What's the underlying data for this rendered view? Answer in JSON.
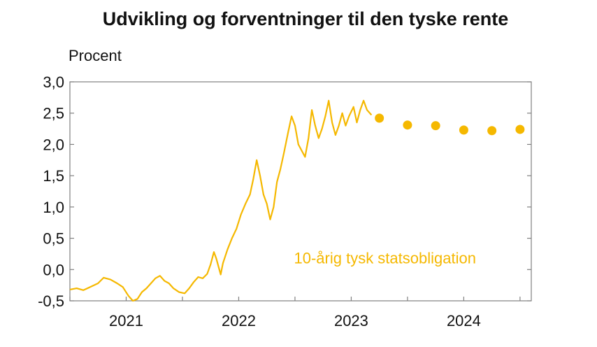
{
  "chart_data": {
    "type": "line",
    "title": "Udvikling og forventninger til den tyske rente",
    "ylabel": "Procent",
    "xlabel": "",
    "ylim": [
      -0.5,
      3.0
    ],
    "y_ticks": [
      -0.5,
      0.0,
      0.5,
      1.0,
      1.5,
      2.0,
      2.5,
      3.0
    ],
    "y_tick_labels": [
      "-0,5",
      "0,0",
      "0,5",
      "1,0",
      "1,5",
      "2,0",
      "2,5",
      "3,0"
    ],
    "xlim": [
      2020.5,
      2024.6
    ],
    "x_year_labels": [
      {
        "label": "2021",
        "x": 2021.0
      },
      {
        "label": "2022",
        "x": 2022.0
      },
      {
        "label": "2023",
        "x": 2023.0
      },
      {
        "label": "2024",
        "x": 2024.0
      }
    ],
    "grid": false,
    "accent_color": "#f5b800",
    "series": [
      {
        "name": "10-årig tysk statsobligation",
        "style": "line",
        "points": [
          [
            2020.5,
            -0.32
          ],
          [
            2020.56,
            -0.3
          ],
          [
            2020.62,
            -0.33
          ],
          [
            2020.68,
            -0.28
          ],
          [
            2020.75,
            -0.22
          ],
          [
            2020.8,
            -0.13
          ],
          [
            2020.86,
            -0.16
          ],
          [
            2020.92,
            -0.22
          ],
          [
            2020.97,
            -0.28
          ],
          [
            2021.02,
            -0.42
          ],
          [
            2021.06,
            -0.5
          ],
          [
            2021.1,
            -0.47
          ],
          [
            2021.14,
            -0.36
          ],
          [
            2021.18,
            -0.3
          ],
          [
            2021.22,
            -0.22
          ],
          [
            2021.26,
            -0.14
          ],
          [
            2021.3,
            -0.1
          ],
          [
            2021.34,
            -0.18
          ],
          [
            2021.38,
            -0.22
          ],
          [
            2021.42,
            -0.3
          ],
          [
            2021.47,
            -0.36
          ],
          [
            2021.52,
            -0.38
          ],
          [
            2021.56,
            -0.3
          ],
          [
            2021.6,
            -0.2
          ],
          [
            2021.64,
            -0.12
          ],
          [
            2021.68,
            -0.14
          ],
          [
            2021.72,
            -0.07
          ],
          [
            2021.75,
            0.08
          ],
          [
            2021.78,
            0.28
          ],
          [
            2021.8,
            0.18
          ],
          [
            2021.82,
            0.05
          ],
          [
            2021.84,
            -0.08
          ],
          [
            2021.86,
            0.1
          ],
          [
            2021.9,
            0.32
          ],
          [
            2021.94,
            0.5
          ],
          [
            2021.98,
            0.65
          ],
          [
            2022.02,
            0.88
          ],
          [
            2022.06,
            1.05
          ],
          [
            2022.1,
            1.2
          ],
          [
            2022.13,
            1.45
          ],
          [
            2022.16,
            1.75
          ],
          [
            2022.19,
            1.5
          ],
          [
            2022.22,
            1.2
          ],
          [
            2022.25,
            1.05
          ],
          [
            2022.28,
            0.8
          ],
          [
            2022.31,
            1.0
          ],
          [
            2022.34,
            1.4
          ],
          [
            2022.37,
            1.6
          ],
          [
            2022.4,
            1.85
          ],
          [
            2022.44,
            2.2
          ],
          [
            2022.47,
            2.45
          ],
          [
            2022.5,
            2.3
          ],
          [
            2022.53,
            2.0
          ],
          [
            2022.56,
            1.9
          ],
          [
            2022.59,
            1.8
          ],
          [
            2022.62,
            2.1
          ],
          [
            2022.65,
            2.55
          ],
          [
            2022.68,
            2.3
          ],
          [
            2022.71,
            2.1
          ],
          [
            2022.74,
            2.25
          ],
          [
            2022.77,
            2.45
          ],
          [
            2022.8,
            2.7
          ],
          [
            2022.83,
            2.35
          ],
          [
            2022.86,
            2.15
          ],
          [
            2022.89,
            2.3
          ],
          [
            2022.92,
            2.5
          ],
          [
            2022.95,
            2.3
          ],
          [
            2022.98,
            2.45
          ],
          [
            2023.02,
            2.6
          ],
          [
            2023.05,
            2.35
          ],
          [
            2023.08,
            2.55
          ],
          [
            2023.11,
            2.7
          ],
          [
            2023.14,
            2.55
          ],
          [
            2023.18,
            2.47
          ]
        ]
      },
      {
        "name": "",
        "style": "dots",
        "points": [
          [
            2023.25,
            2.42
          ],
          [
            2023.5,
            2.31
          ],
          [
            2023.75,
            2.3
          ],
          [
            2024.0,
            2.23
          ],
          [
            2024.25,
            2.22
          ],
          [
            2024.5,
            2.24
          ]
        ]
      }
    ],
    "annotations": [
      {
        "text": "10-årig tysk statsobligation",
        "x": 2023.3,
        "y": 0.1,
        "anchor": "middle"
      }
    ]
  }
}
